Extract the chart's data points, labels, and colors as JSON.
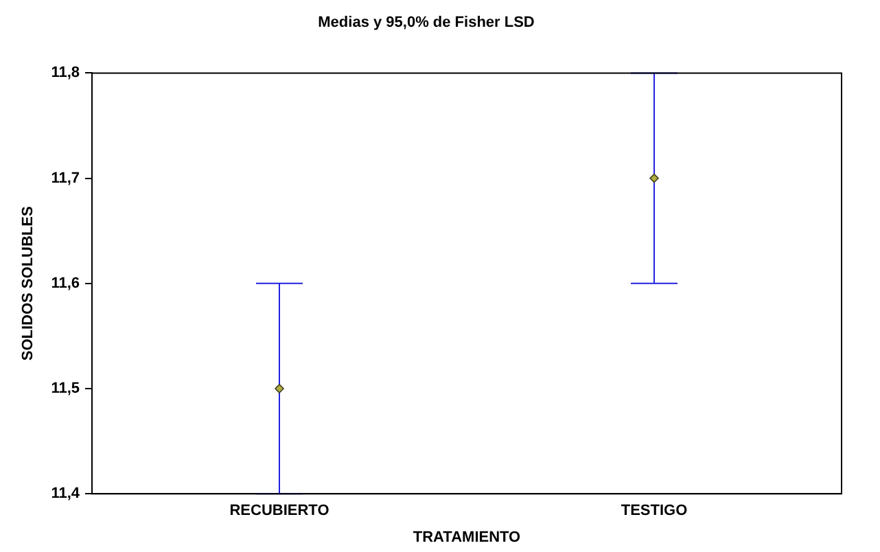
{
  "chart_data": {
    "type": "scatter",
    "title": "Medias y 95,0% de Fisher LSD",
    "xlabel": "TRATAMIENTO",
    "ylabel": "SOLIDOS SOLUBLES",
    "categories": [
      "RECUBIERTO",
      "TESTIGO"
    ],
    "series": [
      {
        "color": "#b0b040",
        "values": [
          11.5,
          11.7
        ],
        "errors": [
          0.1,
          0.1
        ]
      }
    ],
    "ylim": [
      11.4,
      11.8
    ],
    "yticks": [
      {
        "value": 11.4,
        "label": "11,4"
      },
      {
        "value": 11.5,
        "label": "11,5"
      },
      {
        "value": 11.6,
        "label": "11,6"
      },
      {
        "value": 11.7,
        "label": "11,7"
      },
      {
        "value": 11.8,
        "label": "11,8"
      }
    ],
    "grid": false,
    "legend": false,
    "marker": "diamond"
  }
}
